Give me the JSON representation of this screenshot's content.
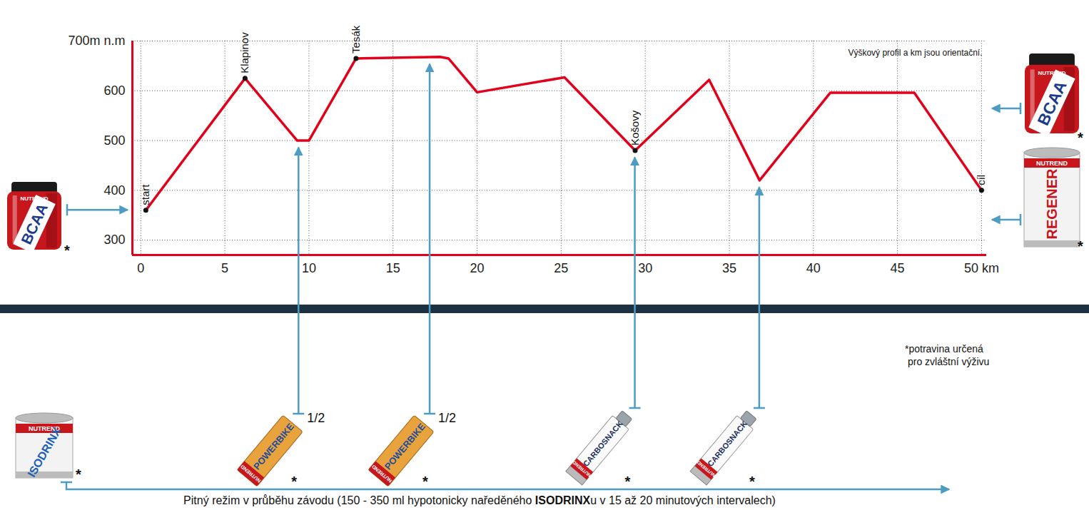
{
  "chart_data": {
    "type": "line",
    "x": [
      0.3,
      6.2,
      9.3,
      10,
      12.8,
      17.8,
      18.3,
      20,
      25.2,
      29.4,
      33.8,
      36.8,
      41,
      46,
      50
    ],
    "values": [
      360,
      625,
      500,
      500,
      665,
      668,
      665,
      597,
      627,
      480,
      622,
      420,
      596,
      596,
      400
    ],
    "color": "#e2001a",
    "xlim": [
      -0.5,
      50.3
    ],
    "xticks": [
      0,
      5,
      10,
      15,
      20,
      25,
      30,
      35,
      40,
      45,
      {
        "value": 50,
        "label": "50 km"
      }
    ],
    "ylim": [
      270,
      700
    ],
    "yticks": [
      300,
      400,
      500,
      600,
      {
        "value": 700,
        "label": "700m n.m"
      }
    ],
    "grid": true,
    "annotations": [
      {
        "x": 0.3,
        "y": 360,
        "text": "start"
      },
      {
        "x": 6.2,
        "y": 625,
        "text": "Klapinov"
      },
      {
        "x": 12.8,
        "y": 665,
        "text": "Tesák"
      },
      {
        "x": 29.4,
        "y": 480,
        "text": "Košovy"
      },
      {
        "x": 50,
        "y": 400,
        "text": "cíl"
      }
    ],
    "note": "Výškový profil a km jsou orientační."
  },
  "nutrition": {
    "brand": "NUTREND",
    "asterisk": "*",
    "footnote": [
      "*potravina určená",
      "pro zvláštní výživu"
    ],
    "before": [
      {
        "name": "BCAA"
      }
    ],
    "after": [
      {
        "name": "BCAA"
      },
      {
        "name": "REGENER"
      }
    ],
    "during": [
      {
        "name": "POWERBIKE",
        "km": 9.4,
        "portion": "1/2"
      },
      {
        "name": "POWERBIKE",
        "km": 17.2,
        "portion": "1/2"
      },
      {
        "name": "CARBOSNACK",
        "km": 29.4
      },
      {
        "name": "CARBOSNACK",
        "km": 36.8
      }
    ],
    "drink": {
      "name": "ISODRINX",
      "text_before": "Pitný režim v průběhu závodu (150 - 350 ml hypotonicky naředěného ",
      "bold": "ISODRINX",
      "text_after": "u v 15 až 20 minutových intervalech)"
    }
  }
}
